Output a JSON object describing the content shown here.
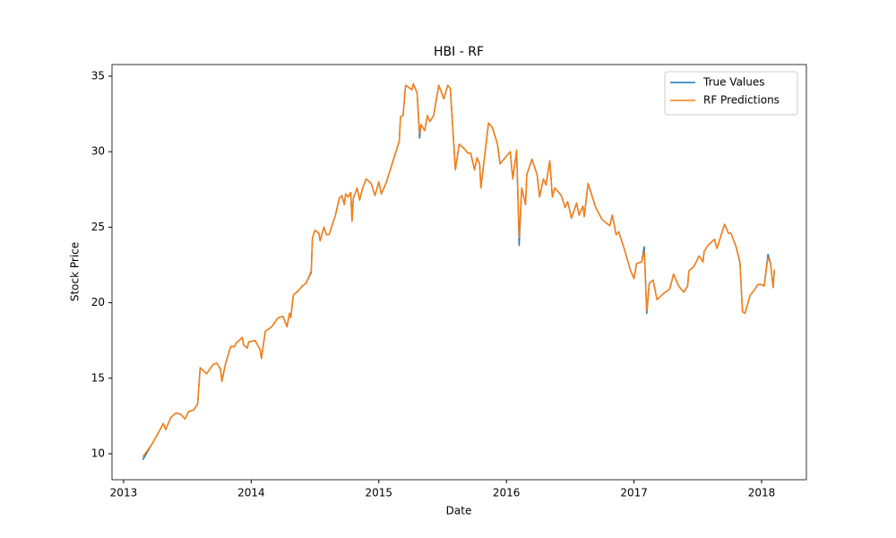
{
  "chart_data": {
    "type": "line",
    "title": "HBI - RF",
    "xlabel": "Date",
    "ylabel": "Stock Price",
    "x": [
      2013.15,
      2013.22,
      2013.28,
      2013.31,
      2013.33,
      2013.37,
      2013.41,
      2013.45,
      2013.48,
      2013.51,
      2013.55,
      2013.58,
      2013.6,
      2013.65,
      2013.7,
      2013.73,
      2013.76,
      2013.77,
      2013.8,
      2013.84,
      2013.87,
      2013.88,
      2013.93,
      2013.94,
      2013.97,
      2013.98,
      2014.03,
      2014.07,
      2014.08,
      2014.11,
      2014.16,
      2014.21,
      2014.25,
      2014.28,
      2014.3,
      2014.31,
      2014.33,
      2014.37,
      2014.4,
      2014.43,
      2014.47,
      2014.48,
      2014.5,
      2014.53,
      2014.54,
      2014.57,
      2014.59,
      2014.61,
      2014.66,
      2014.69,
      2014.71,
      2014.73,
      2014.74,
      2014.76,
      2014.78,
      2014.79,
      2014.8,
      2014.83,
      2014.85,
      2014.87,
      2014.9,
      2014.94,
      2014.97,
      2015.0,
      2015.02,
      2015.06,
      2015.16,
      2015.17,
      2015.19,
      2015.21,
      2015.26,
      2015.27,
      2015.3,
      2015.32,
      2015.33,
      2015.36,
      2015.38,
      2015.4,
      2015.43,
      2015.47,
      2015.51,
      2015.54,
      2015.56,
      2015.57,
      2015.6,
      2015.63,
      2015.67,
      2015.7,
      2015.72,
      2015.75,
      2015.77,
      2015.79,
      2015.8,
      2015.86,
      2015.89,
      2015.93,
      2015.95,
      2015.98,
      2016.03,
      2016.05,
      2016.08,
      2016.1,
      2016.12,
      2016.15,
      2016.16,
      2016.2,
      2016.24,
      2016.26,
      2016.29,
      2016.31,
      2016.34,
      2016.36,
      2016.38,
      2016.43,
      2016.46,
      2016.48,
      2016.51,
      2016.55,
      2016.57,
      2016.6,
      2016.61,
      2016.64,
      2016.7,
      2016.75,
      2016.81,
      2016.83,
      2016.86,
      2016.88,
      2016.93,
      2016.97,
      2017.0,
      2017.02,
      2017.06,
      2017.08,
      2017.1,
      2017.12,
      2017.15,
      2017.18,
      2017.23,
      2017.28,
      2017.31,
      2017.35,
      2017.39,
      2017.42,
      2017.43,
      2017.47,
      2017.51,
      2017.54,
      2017.55,
      2017.58,
      2017.63,
      2017.65,
      2017.71,
      2017.74,
      2017.76,
      2017.8,
      2017.83,
      2017.85,
      2017.87,
      2017.91,
      2017.94,
      2017.97,
      2018.0,
      2018.02,
      2018.05,
      2018.07,
      2018.09,
      2018.1
    ],
    "series": [
      {
        "name": "True Values",
        "color": "#1f77b4",
        "values": [
          9.6,
          10.6,
          11.5,
          12.0,
          11.6,
          12.4,
          12.7,
          12.6,
          12.3,
          12.8,
          12.9,
          13.3,
          15.7,
          15.3,
          15.9,
          16.0,
          15.6,
          14.8,
          16.0,
          17.1,
          17.1,
          17.3,
          17.7,
          17.2,
          17.0,
          17.4,
          17.5,
          16.9,
          16.3,
          18.1,
          18.4,
          19.0,
          19.1,
          18.4,
          19.3,
          19.0,
          20.5,
          20.8,
          21.1,
          21.3,
          22.0,
          24.3,
          24.8,
          24.6,
          24.1,
          25.0,
          24.5,
          24.5,
          25.8,
          26.9,
          27.1,
          26.5,
          27.2,
          27.0,
          27.3,
          25.4,
          26.9,
          27.6,
          26.8,
          27.5,
          28.2,
          27.9,
          27.1,
          28.0,
          27.2,
          28.0,
          30.7,
          32.3,
          32.4,
          34.4,
          34.1,
          34.5,
          33.9,
          30.9,
          31.8,
          31.4,
          32.4,
          32.0,
          32.4,
          34.4,
          33.5,
          34.4,
          34.2,
          32.9,
          28.8,
          30.5,
          30.2,
          29.9,
          29.9,
          28.8,
          29.6,
          29.2,
          27.6,
          31.9,
          31.6,
          30.5,
          29.2,
          29.5,
          30.0,
          28.2,
          30.1,
          23.8,
          27.6,
          26.5,
          28.5,
          29.5,
          28.5,
          27.0,
          28.2,
          27.8,
          29.4,
          27.0,
          27.6,
          27.1,
          26.3,
          26.7,
          25.6,
          26.6,
          25.8,
          26.4,
          25.7,
          27.9,
          26.3,
          25.5,
          25.1,
          25.8,
          24.5,
          24.7,
          23.4,
          22.2,
          21.6,
          22.6,
          22.7,
          23.7,
          19.3,
          21.3,
          21.5,
          20.2,
          20.6,
          20.9,
          21.9,
          21.1,
          20.7,
          21.1,
          22.1,
          22.4,
          23.1,
          22.7,
          23.4,
          23.8,
          24.2,
          23.6,
          25.2,
          24.6,
          24.6,
          23.7,
          22.7,
          19.4,
          19.3,
          20.5,
          20.8,
          21.2,
          21.2,
          21.1,
          23.2,
          22.6,
          21.0,
          22.2
        ]
      },
      {
        "name": "RF Predictions",
        "color": "#ff7f0e",
        "values": [
          9.8,
          10.6,
          11.5,
          12.0,
          11.6,
          12.4,
          12.7,
          12.6,
          12.3,
          12.8,
          12.9,
          13.3,
          15.7,
          15.3,
          15.9,
          16.0,
          15.6,
          14.8,
          16.0,
          17.1,
          17.1,
          17.3,
          17.7,
          17.2,
          17.0,
          17.4,
          17.5,
          16.9,
          16.3,
          18.1,
          18.4,
          19.0,
          19.1,
          18.4,
          19.3,
          19.0,
          20.5,
          20.8,
          21.1,
          21.3,
          22.1,
          24.3,
          24.8,
          24.6,
          24.1,
          25.0,
          24.5,
          24.5,
          25.8,
          26.9,
          27.1,
          26.5,
          27.2,
          27.0,
          27.3,
          25.4,
          26.9,
          27.6,
          26.8,
          27.5,
          28.2,
          27.9,
          27.1,
          28.0,
          27.2,
          28.0,
          30.7,
          32.3,
          32.4,
          34.4,
          34.1,
          34.5,
          33.9,
          31.2,
          31.8,
          31.4,
          32.4,
          32.0,
          32.4,
          34.4,
          33.5,
          34.4,
          34.2,
          32.9,
          28.8,
          30.5,
          30.2,
          29.9,
          29.9,
          28.8,
          29.6,
          29.2,
          27.6,
          31.9,
          31.6,
          30.5,
          29.2,
          29.5,
          30.0,
          28.2,
          30.1,
          24.3,
          27.6,
          26.5,
          28.5,
          29.5,
          28.5,
          27.0,
          28.2,
          27.8,
          29.4,
          27.0,
          27.6,
          27.1,
          26.3,
          26.7,
          25.6,
          26.6,
          25.8,
          26.4,
          25.7,
          27.9,
          26.3,
          25.5,
          25.1,
          25.8,
          24.5,
          24.7,
          23.4,
          22.2,
          21.6,
          22.6,
          22.7,
          23.4,
          19.5,
          21.3,
          21.5,
          20.2,
          20.6,
          20.9,
          21.9,
          21.1,
          20.7,
          21.1,
          22.1,
          22.4,
          23.1,
          22.7,
          23.4,
          23.8,
          24.2,
          23.6,
          25.2,
          24.6,
          24.6,
          23.7,
          22.7,
          19.4,
          19.3,
          20.5,
          20.8,
          21.2,
          21.2,
          21.1,
          23.0,
          22.6,
          21.0,
          22.2
        ]
      }
    ],
    "xlim": [
      2012.909,
      2018.351
    ],
    "xticks": [
      2013,
      2014,
      2015,
      2016,
      2017,
      2018
    ],
    "ylim": [
      8.28,
      35.77
    ],
    "yticks": [
      10,
      15,
      20,
      25,
      30,
      35
    ],
    "legend": "upper right"
  }
}
